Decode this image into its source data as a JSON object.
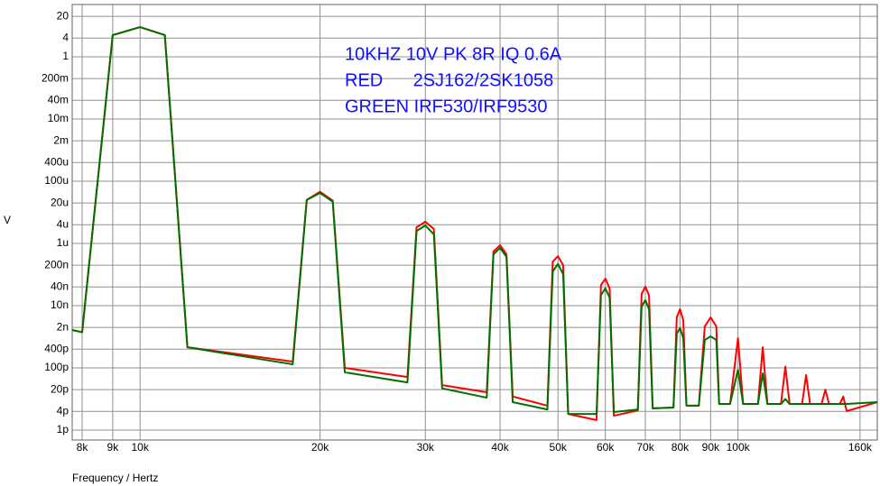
{
  "chart_data": {
    "type": "line",
    "annotations": [
      "10KHZ 10V PK 8R IQ 0.6A",
      "RED      2SJ162/2SK1058",
      "GREEN IRF530/IRF9530"
    ],
    "x_label": "Frequency / Hertz",
    "y_label": "V",
    "x_scale": "log",
    "y_scale": "log",
    "grid": true,
    "xlim": [
      7700,
      171000
    ],
    "ylim": [
      4.8e-13,
      48
    ],
    "xticks": [
      {
        "value": 8000,
        "label": "8k"
      },
      {
        "value": 9000,
        "label": "9k"
      },
      {
        "value": 10000,
        "label": "10k"
      },
      {
        "value": 20000,
        "label": "20k"
      },
      {
        "value": 30000,
        "label": "30k"
      },
      {
        "value": 40000,
        "label": "40k"
      },
      {
        "value": 50000,
        "label": "50k"
      },
      {
        "value": 60000,
        "label": "60k"
      },
      {
        "value": 70000,
        "label": "70k"
      },
      {
        "value": 80000,
        "label": "80k"
      },
      {
        "value": 90000,
        "label": "90k"
      },
      {
        "value": 100000,
        "label": "100k"
      },
      {
        "value": 160000,
        "label": "160k"
      }
    ],
    "yticks": [
      20,
      4,
      1,
      {
        "value": 0.2,
        "label": "200m"
      },
      {
        "value": 0.04,
        "label": "40m"
      },
      {
        "value": 0.01,
        "label": "10m"
      },
      {
        "value": 0.002,
        "label": "2m"
      },
      {
        "value": 0.0004,
        "label": "400u"
      },
      {
        "value": 0.0001,
        "label": "100u"
      },
      {
        "value": 2e-05,
        "label": "20u"
      },
      {
        "value": 4e-06,
        "label": "4u"
      },
      {
        "value": 1e-06,
        "label": "1u"
      },
      {
        "value": 2e-07,
        "label": "200n"
      },
      {
        "value": 4e-08,
        "label": "40n"
      },
      {
        "value": 1e-08,
        "label": "10n"
      },
      {
        "value": 2e-09,
        "label": "2n"
      },
      {
        "value": 4e-10,
        "label": "400p"
      },
      {
        "value": 1e-10,
        "label": "100p"
      },
      {
        "value": 2e-11,
        "label": "20p"
      },
      {
        "value": 4e-12,
        "label": "4p"
      },
      {
        "value": 1e-12,
        "label": "1p"
      }
    ],
    "x": [
      7700,
      8000,
      9000,
      10000,
      11000,
      12000,
      18000,
      19000,
      20000,
      21000,
      22000,
      28000,
      29000,
      30000,
      31000,
      32000,
      38000,
      39000,
      40000,
      41000,
      42000,
      48000,
      49000,
      50000,
      51000,
      52000,
      58000,
      59000,
      60000,
      61000,
      62000,
      68000,
      69000,
      70000,
      71000,
      72000,
      78000,
      79000,
      80000,
      81000,
      82000,
      86000,
      88000,
      90000,
      92000,
      93000,
      97000,
      100000,
      102000,
      108000,
      110000,
      112000,
      118000,
      120000,
      122000,
      128000,
      130000,
      132000,
      138000,
      140000,
      142000,
      148000,
      150000,
      152000,
      171000
    ],
    "series": [
      {
        "name": "RED",
        "color": "#ff0000",
        "values": [
          1.65e-09,
          1.4e-09,
          5,
          9,
          5,
          4.6e-10,
          1.6e-10,
          2.5e-05,
          4.6e-05,
          2.4e-05,
          1e-10,
          5.1e-11,
          3.3e-06,
          5e-06,
          2.9e-06,
          2.8e-11,
          1.65e-11,
          5.5e-07,
          8.8e-07,
          4.5e-07,
          1.2e-11,
          6.1e-12,
          2.6e-07,
          3.9e-07,
          2e-07,
          3.3e-12,
          2.1e-12,
          4.6e-08,
          7.4e-08,
          3.6e-08,
          2.9e-12,
          4.3e-12,
          2.4e-08,
          4.1e-08,
          2.1e-08,
          5e-12,
          5.3e-12,
          4.2e-09,
          7.7e-09,
          3.4e-09,
          6.1e-12,
          6.1e-12,
          2.15e-09,
          4.2e-09,
          2.15e-09,
          6.9e-12,
          6.9e-12,
          9e-10,
          6.9e-12,
          6.9e-12,
          4.6e-10,
          6.9e-12,
          6.9e-12,
          1.1e-10,
          6.9e-12,
          6.9e-12,
          5.9e-11,
          6.9e-12,
          6.9e-12,
          2e-11,
          6.9e-12,
          6.9e-12,
          1.2e-11,
          4.1e-12,
          7.9e-12
        ]
      },
      {
        "name": "GREEN",
        "color": "#007000",
        "values": [
          1.65e-09,
          1.4e-09,
          5,
          9,
          5,
          4.6e-10,
          1.3e-10,
          2.5e-05,
          4.2e-05,
          2.2e-05,
          7.2e-11,
          3.4e-11,
          2.5e-06,
          3.8e-06,
          1.95e-06,
          2.2e-11,
          1.1e-11,
          4.5e-07,
          7.2e-07,
          3.7e-07,
          7.9e-12,
          4.6e-12,
          1.26e-07,
          2.2e-07,
          1.03e-07,
          3.3e-12,
          3.3e-12,
          2.2e-08,
          3.6e-08,
          1.8e-08,
          3.8e-12,
          4.6e-12,
          9.4e-09,
          1.5e-08,
          7.7e-09,
          5e-12,
          5.3e-12,
          1.26e-09,
          1.9e-09,
          9e-10,
          6.1e-12,
          6.1e-12,
          7.9e-10,
          1.03e-09,
          7.9e-10,
          6.9e-12,
          6.9e-12,
          8.7e-11,
          6.9e-12,
          6.9e-12,
          6.7e-11,
          6.9e-12,
          6.9e-12,
          1e-11,
          6.9e-12,
          6.9e-12,
          6.9e-12,
          6.9e-12,
          6.9e-12,
          6.9e-12,
          6.9e-12,
          6.9e-12,
          6.9e-12,
          6.9e-12,
          7.9e-12
        ]
      }
    ]
  }
}
